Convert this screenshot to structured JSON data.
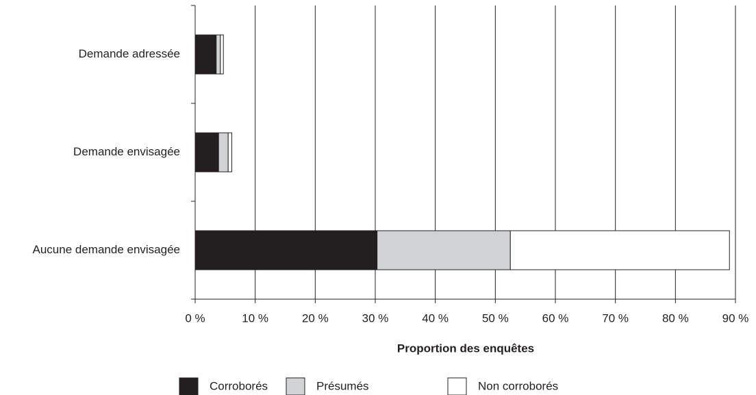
{
  "chart_data": {
    "type": "stacked_barh",
    "categories": [
      "Demande adressée",
      "Demande envisagée",
      "Aucune demande envisagée"
    ],
    "series": [
      {
        "name": "Corroborés",
        "color": "#231f20",
        "values": [
          3.5,
          3.9,
          30.3
        ]
      },
      {
        "name": "Présumés",
        "color": "#d1d2d4",
        "values": [
          0.7,
          1.6,
          22.2
        ]
      },
      {
        "name": "Non corroborés",
        "color": "#ffffff",
        "values": [
          0.5,
          0.6,
          36.5
        ]
      }
    ],
    "xlabel": "Proportion des enquêtes",
    "xlim": [
      0,
      90
    ],
    "xticks": [
      {
        "value": 0,
        "label": "0 %"
      },
      {
        "value": 10,
        "label": "10 %"
      },
      {
        "value": 20,
        "label": "20 %"
      },
      {
        "value": 30,
        "label": "30 %"
      },
      {
        "value": 40,
        "label": "40 %"
      },
      {
        "value": 50,
        "label": "50 %"
      },
      {
        "value": 60,
        "label": "60 %"
      },
      {
        "value": 70,
        "label": "70 %"
      },
      {
        "value": 80,
        "label": "80 %"
      },
      {
        "value": 90,
        "label": "90 %"
      }
    ],
    "grid": true,
    "legend": "bottom"
  }
}
